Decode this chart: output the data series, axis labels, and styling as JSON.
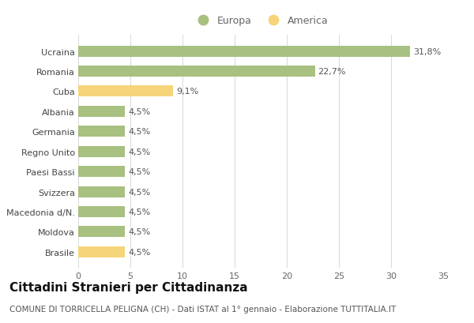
{
  "categories": [
    "Brasile",
    "Moldova",
    "Macedonia d/N.",
    "Svizzera",
    "Paesi Bassi",
    "Regno Unito",
    "Germania",
    "Albania",
    "Cuba",
    "Romania",
    "Ucraina"
  ],
  "values": [
    4.5,
    4.5,
    4.5,
    4.5,
    4.5,
    4.5,
    4.5,
    4.5,
    9.1,
    22.7,
    31.8
  ],
  "labels": [
    "4,5%",
    "4,5%",
    "4,5%",
    "4,5%",
    "4,5%",
    "4,5%",
    "4,5%",
    "4,5%",
    "9,1%",
    "22,7%",
    "31,8%"
  ],
  "colors": [
    "#f5d47a",
    "#a8c080",
    "#a8c080",
    "#a8c080",
    "#a8c080",
    "#a8c080",
    "#a8c080",
    "#a8c080",
    "#f5d47a",
    "#a8c080",
    "#a8c080"
  ],
  "europa_color": "#a8c080",
  "america_color": "#f5d47a",
  "title": "Cittadini Stranieri per Cittadinanza",
  "subtitle": "COMUNE DI TORRICELLA PELIGNA (CH) - Dati ISTAT al 1° gennaio - Elaborazione TUTTITALIA.IT",
  "xlim": [
    0,
    35
  ],
  "xticks": [
    0,
    5,
    10,
    15,
    20,
    25,
    30,
    35
  ],
  "background_color": "#ffffff",
  "grid_color": "#d8d8d8",
  "bar_height": 0.55,
  "legend_europa": "Europa",
  "legend_america": "America",
  "title_fontsize": 11,
  "subtitle_fontsize": 7.5,
  "tick_fontsize": 8,
  "label_fontsize": 8
}
